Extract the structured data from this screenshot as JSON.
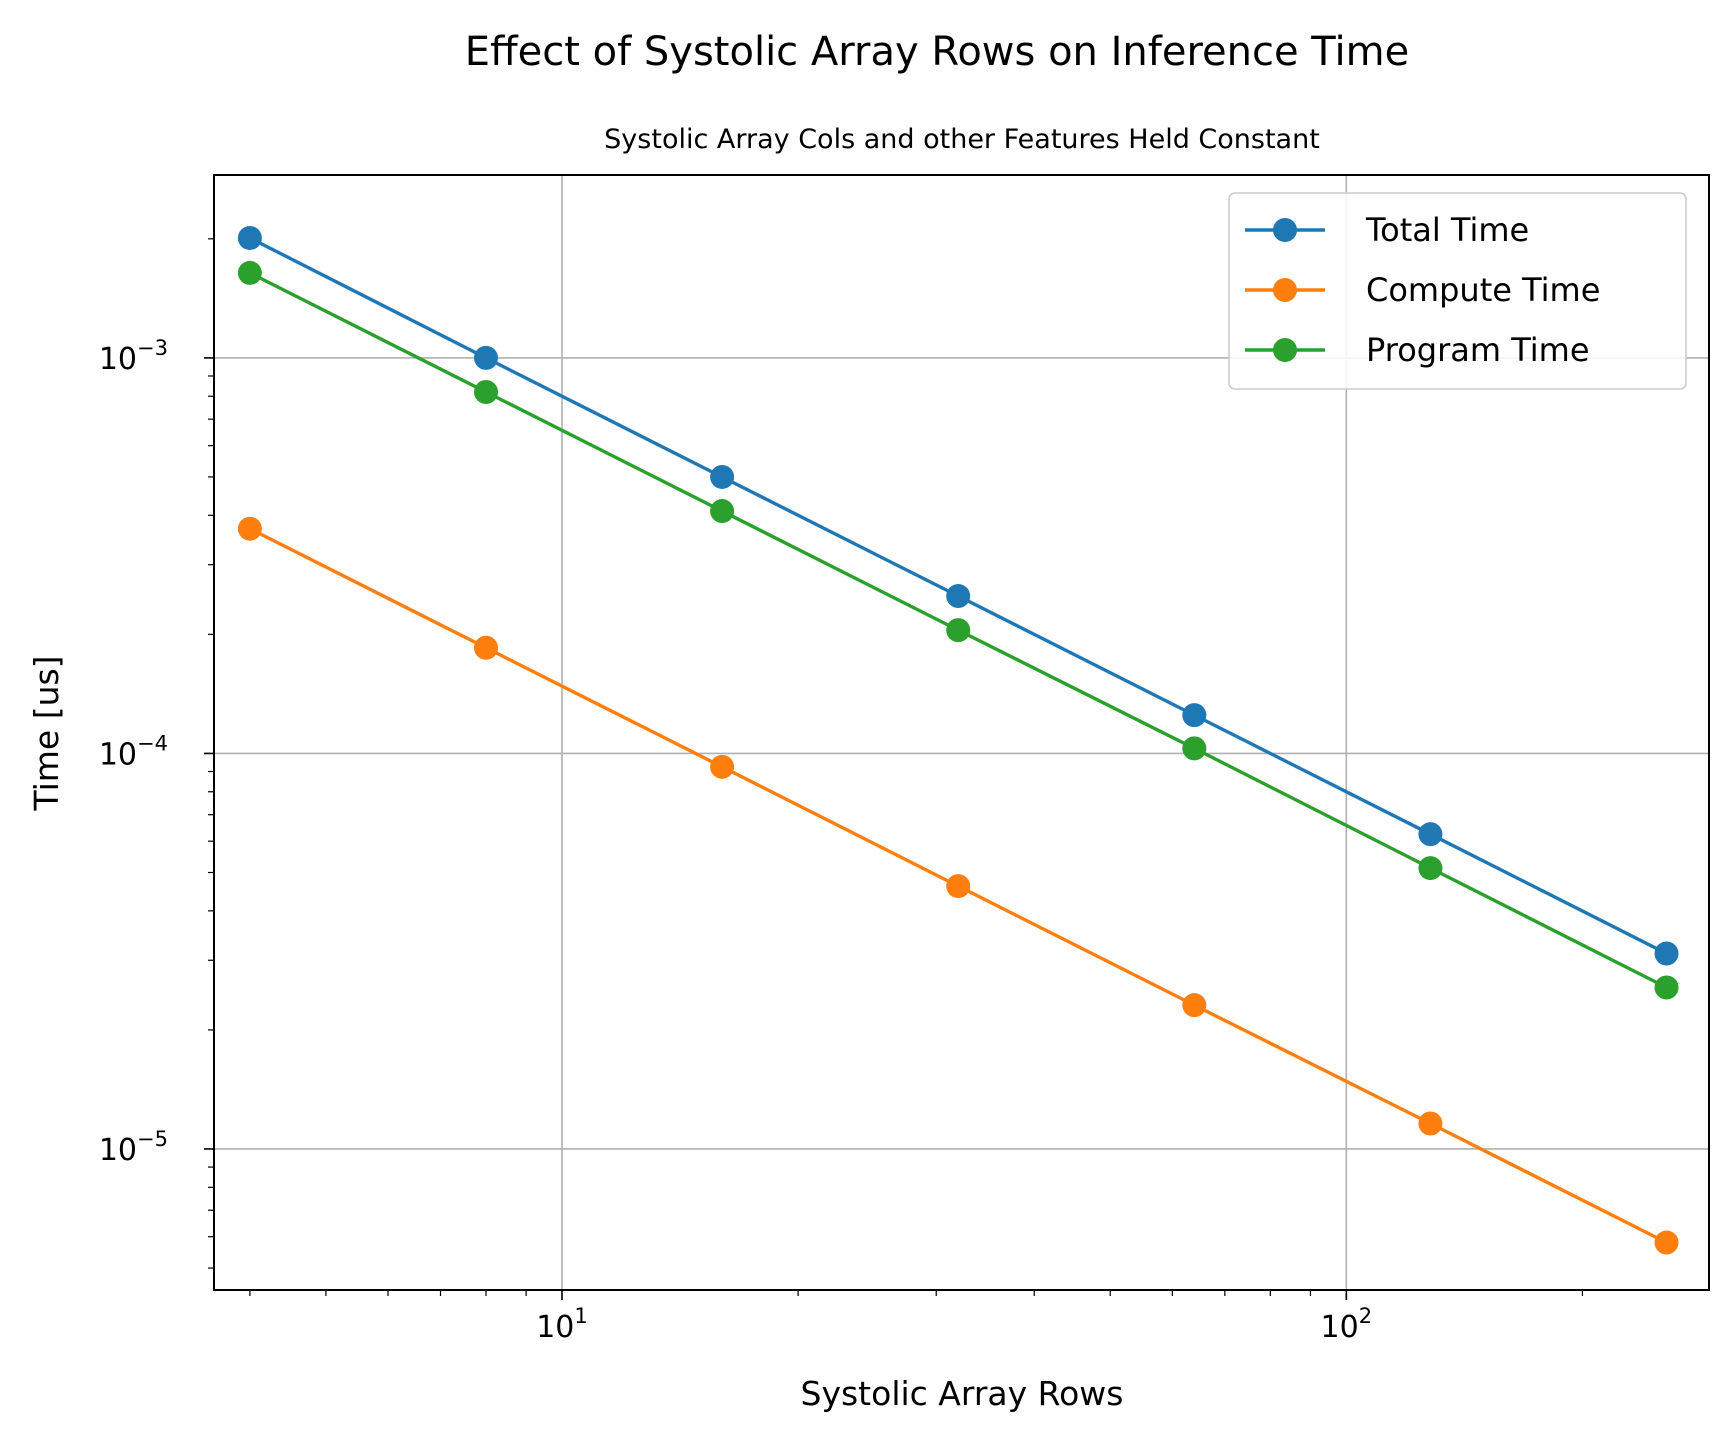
{
  "chart_data": {
    "type": "line",
    "title": "Effect of Systolic Array Rows on Inference Time",
    "subtitle": "Systolic Array Cols and other Features Held Constant",
    "xlabel": "Systolic Array Rows",
    "ylabel": "Time [us]",
    "x_scale": "log",
    "y_scale": "log",
    "xlim": [
      3.6,
      290
    ],
    "ylim": [
      4.4e-06,
      0.0029
    ],
    "grid": true,
    "legend_position": "top-right",
    "x_ticks": [
      {
        "value": 10,
        "base": "10",
        "exp": "1"
      },
      {
        "value": 100,
        "base": "10",
        "exp": "2"
      }
    ],
    "y_ticks": [
      {
        "value": 0.001,
        "base": "10",
        "exp": "−3"
      },
      {
        "value": 0.0001,
        "base": "10",
        "exp": "−4"
      },
      {
        "value": 1e-05,
        "base": "10",
        "exp": "−5"
      }
    ],
    "x": [
      4,
      8,
      16,
      32,
      64,
      128,
      256
    ],
    "series": [
      {
        "name": "Total Time",
        "color": "#1f77b4",
        "values": [
          0.00201,
          0.001,
          0.0005,
          0.00025,
          0.000125,
          6.25e-05,
          3.12e-05
        ]
      },
      {
        "name": "Compute Time",
        "color": "#ff7f0e",
        "values": [
          0.00037,
          0.000185,
          9.25e-05,
          4.62e-05,
          2.31e-05,
          1.16e-05,
          5.8e-06
        ]
      },
      {
        "name": "Program Time",
        "color": "#2ca02c",
        "values": [
          0.00164,
          0.00082,
          0.00041,
          0.000205,
          0.000103,
          5.13e-05,
          2.56e-05
        ]
      }
    ]
  }
}
